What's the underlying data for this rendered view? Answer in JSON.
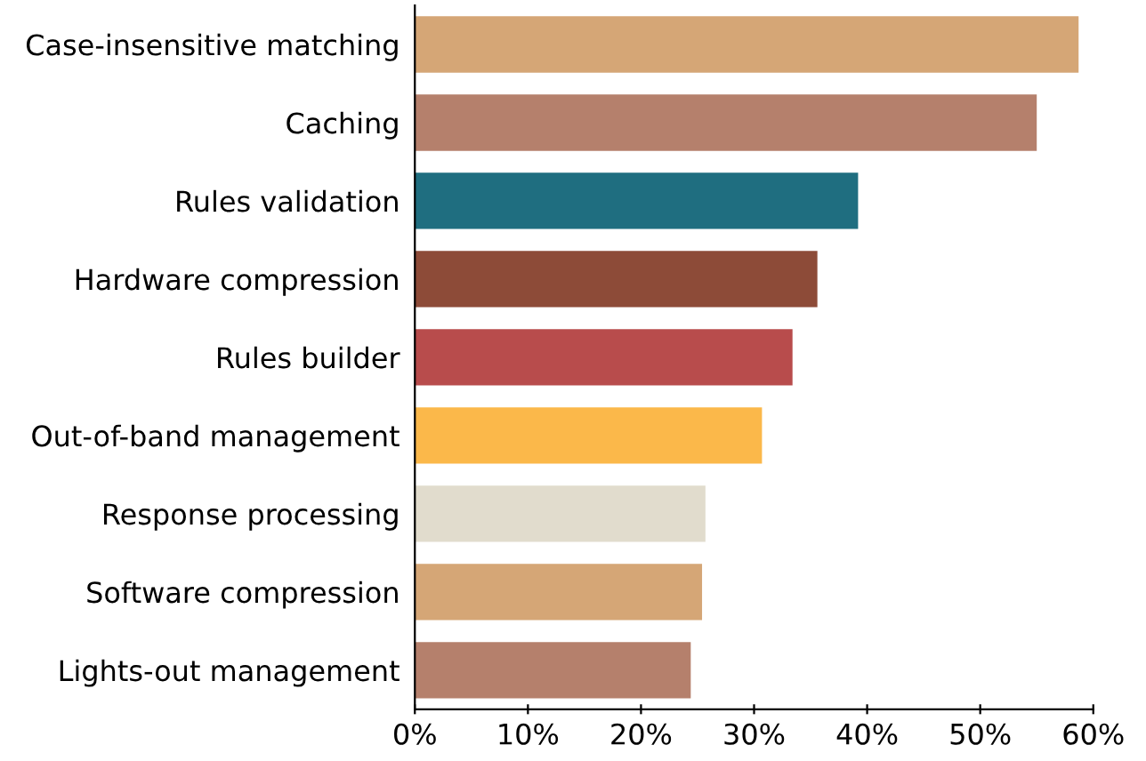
{
  "chart_data": {
    "type": "bar",
    "orientation": "horizontal",
    "categories": [
      "Case-insensitive matching",
      "Caching",
      "Rules validation",
      "Hardware compression",
      "Rules builder",
      "Out-of-band management",
      "Response processing",
      "Software compression",
      "Lights-out management"
    ],
    "values": [
      58.7,
      55.0,
      39.2,
      35.6,
      33.4,
      30.7,
      25.7,
      25.4,
      24.4
    ],
    "colors": [
      "#d5a676",
      "#b5806c",
      "#1f6e80",
      "#8d4b38",
      "#b84c4c",
      "#fbb84a",
      "#e1dccd",
      "#d5a676",
      "#b5806c"
    ],
    "xlim": [
      0,
      60
    ],
    "xticks": [
      {
        "value": 0,
        "label": "0%"
      },
      {
        "value": 10,
        "label": "10%"
      },
      {
        "value": 20,
        "label": "20%"
      },
      {
        "value": 30,
        "label": "30%"
      },
      {
        "value": 40,
        "label": "40%"
      },
      {
        "value": 50,
        "label": "50%"
      },
      {
        "value": 60,
        "label": "60%"
      }
    ],
    "grid": false,
    "legend": false
  }
}
